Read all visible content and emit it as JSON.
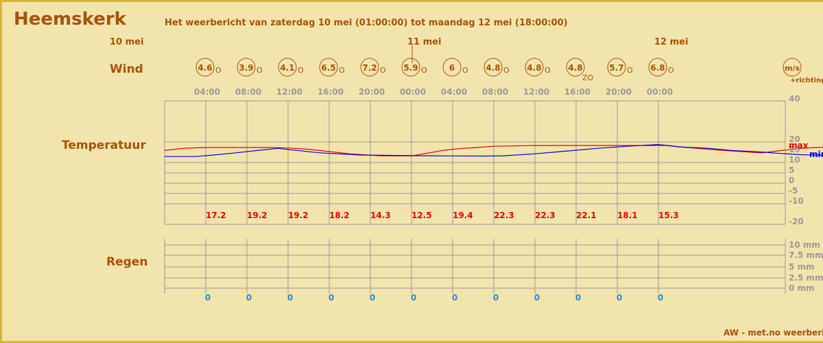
{
  "header": {
    "city": "Heemskerk",
    "period": "Het weerbericht van zaterdag 10 mei (01:00:00) tot maandag 12 mei (18:00:00)"
  },
  "days": [
    "10 mei",
    "11 mei",
    "12 mei"
  ],
  "row_labels": {
    "wind": "Wind",
    "temperature": "Temperatuur",
    "rain": "Regen"
  },
  "wind_legend": {
    "unit": "m/s",
    "direction_note": "+richting"
  },
  "credit": "AW - met.no weerbericht",
  "colors": {
    "background": "#f2e4ad",
    "border": "#d8b43a",
    "label": "#a8520a",
    "grid": "#9a9a9a",
    "max_line": "#e60000",
    "min_line": "#0000dd",
    "rain_value": "#2b8cc4"
  },
  "chart_data": {
    "type": "line",
    "times": [
      "04:00",
      "08:00",
      "12:00",
      "16:00",
      "20:00",
      "00:00",
      "04:00",
      "08:00",
      "12:00",
      "16:00",
      "20:00",
      "00:00"
    ],
    "wind": {
      "speeds": [
        "4.6",
        "3.9",
        "4.1",
        "6.5",
        "7.2",
        "5.9",
        "6",
        "4.8",
        "4.8",
        "4.8",
        "5.7",
        "6.8"
      ],
      "directions": [
        "O",
        "O",
        "O",
        "O",
        "O",
        "O",
        "O",
        "O",
        "O",
        "ZO",
        "O",
        "O"
      ]
    },
    "temperature": {
      "ylim": [
        -20,
        40
      ],
      "ticks": [
        "40",
        "20",
        "15",
        "10",
        "5",
        "0",
        "-5",
        "-10",
        "-20"
      ],
      "series": [
        {
          "name": "max",
          "x_hours": [
            0,
            2,
            4,
            8,
            14,
            20,
            24,
            28,
            32,
            36,
            42,
            48,
            54,
            57,
            60,
            64,
            72,
            76,
            80,
            84,
            88,
            92,
            98,
            100,
            104,
            108,
            112,
            116,
            120,
            124,
            128
          ],
          "values": [
            16,
            16.8,
            17.5,
            18,
            18,
            18,
            17.7,
            16.8,
            15.3,
            13.8,
            12.5,
            12.4,
            16,
            17.2,
            17.8,
            18.8,
            19.3,
            19.3,
            19.3,
            19.3,
            19.3,
            19.3,
            19.3,
            18.5,
            17.3,
            16.2,
            15.3,
            14.4,
            16,
            17.5,
            18.2
          ]
        },
        {
          "name": "min",
          "x_hours": [
            0,
            6,
            10,
            14,
            18,
            22,
            30,
            38,
            48,
            56,
            62,
            66,
            72,
            76,
            80,
            84,
            90,
            96,
            100,
            106,
            110,
            116,
            120,
            124,
            128,
            130,
            132,
            136,
            140
          ],
          "values": [
            12,
            12,
            13.2,
            14.5,
            16,
            17.4,
            14.5,
            13,
            12.6,
            12.4,
            12.3,
            12.5,
            13.8,
            15,
            16.2,
            17.4,
            18.8,
            20,
            18.4,
            17.4,
            16.1,
            15,
            14,
            13.2,
            13,
            13,
            13.5,
            14.5,
            16
          ]
        }
      ],
      "daily_max_labels": [
        "17.2",
        "19.2",
        "19.2",
        "18.2",
        "14.3",
        "12.5",
        "19.4",
        "22.3",
        "22.3",
        "22.1",
        "18.1",
        "15.3"
      ]
    },
    "rain": {
      "ticks": [
        "10 mm",
        "7.5 mm",
        "5 mm",
        "2.5 mm",
        "0 mm"
      ],
      "values": [
        "0",
        "0",
        "0",
        "0",
        "0",
        "0",
        "0",
        "0",
        "0",
        "0",
        "0",
        "0"
      ]
    }
  }
}
